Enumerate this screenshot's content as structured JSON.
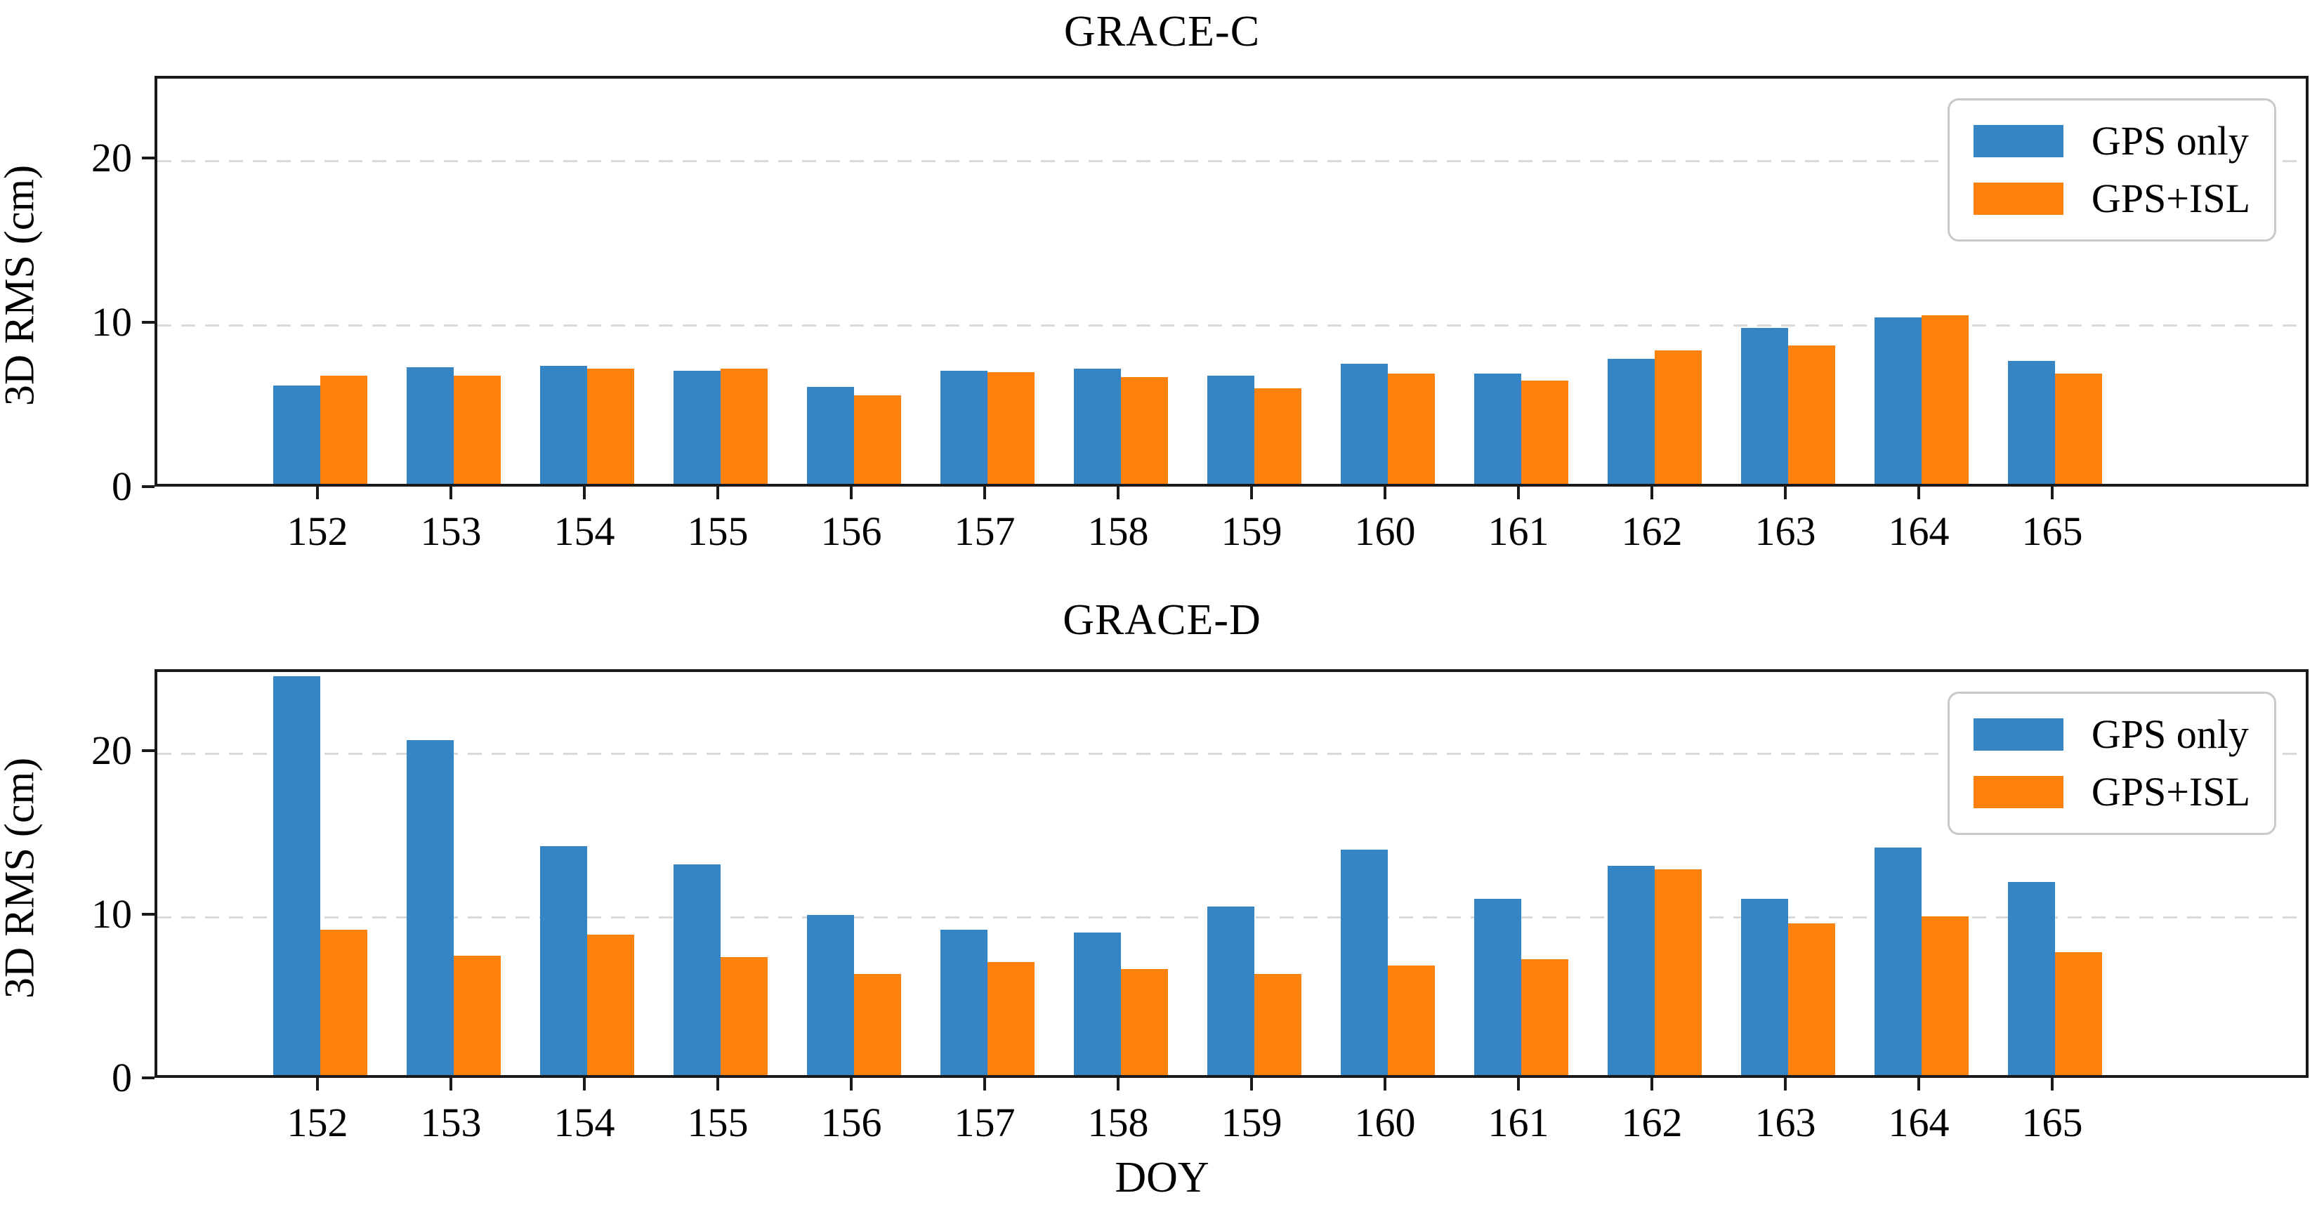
{
  "colors": {
    "gps_only": "#3585c5",
    "gps_isl": "#fe810e",
    "grid": "#d9d9d9",
    "axis": "#1a1a1a"
  },
  "legend": {
    "items": [
      {
        "label": "GPS only",
        "color_key": "gps_only"
      },
      {
        "label": "GPS+ISL",
        "color_key": "gps_isl"
      }
    ]
  },
  "chart_data": [
    {
      "type": "bar",
      "title": "GRACE-C",
      "ylabel": "3D RMS (cm)",
      "xlabel": "",
      "categories": [
        "152",
        "153",
        "154",
        "155",
        "156",
        "157",
        "158",
        "159",
        "160",
        "161",
        "162",
        "163",
        "164",
        "165"
      ],
      "series": [
        {
          "name": "GPS only",
          "color_key": "gps_only",
          "values": [
            6.0,
            7.1,
            7.2,
            6.9,
            5.9,
            6.9,
            7.0,
            6.6,
            7.3,
            6.7,
            7.6,
            9.5,
            10.15,
            7.5
          ]
        },
        {
          "name": "GPS+ISL",
          "color_key": "gps_isl",
          "values": [
            6.6,
            6.6,
            7.0,
            7.0,
            5.4,
            6.8,
            6.5,
            5.8,
            6.7,
            6.3,
            8.1,
            8.4,
            10.25,
            6.7
          ]
        }
      ],
      "ylim": [
        0,
        25
      ],
      "yticks": [
        0,
        10,
        20
      ],
      "grid": "horizontal dashed at yticks 10 and 20",
      "legend_position": "upper right"
    },
    {
      "type": "bar",
      "title": "GRACE-D",
      "ylabel": "3D RMS (cm)",
      "xlabel": "DOY",
      "categories": [
        "152",
        "153",
        "154",
        "155",
        "156",
        "157",
        "158",
        "159",
        "160",
        "161",
        "162",
        "163",
        "164",
        "165"
      ],
      "series": [
        {
          "name": "GPS only",
          "color_key": "gps_only",
          "values": [
            24.4,
            20.5,
            14.0,
            12.9,
            9.8,
            8.9,
            8.7,
            10.3,
            13.8,
            10.8,
            12.8,
            10.8,
            13.9,
            11.8
          ]
        },
        {
          "name": "GPS+ISL",
          "color_key": "gps_isl",
          "values": [
            8.9,
            7.3,
            8.6,
            7.2,
            6.2,
            6.9,
            6.5,
            6.2,
            6.7,
            7.1,
            12.6,
            9.3,
            9.7,
            7.5
          ]
        }
      ],
      "ylim": [
        0,
        25
      ],
      "yticks": [
        0,
        10,
        20
      ],
      "grid": "horizontal dashed at yticks 10 and 20",
      "legend_position": "upper right"
    }
  ]
}
